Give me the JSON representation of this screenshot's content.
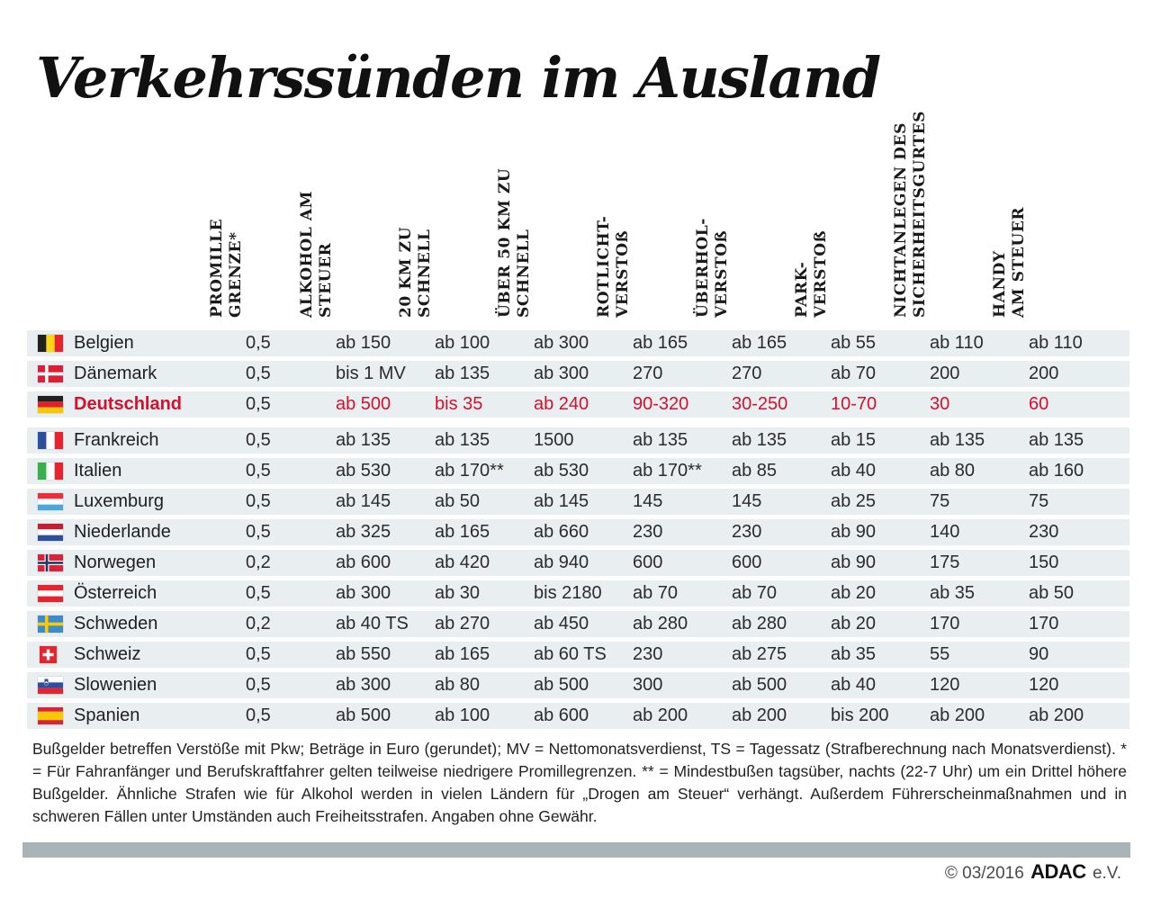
{
  "title": "Verkehrssünden im Ausland",
  "chart_data": {
    "type": "table",
    "title": "Verkehrssünden im Ausland",
    "columns": [
      "Promille Grenze*",
      "Alkohol am Steuer",
      "20 km zu schnell",
      "Über 50 km zu schnell",
      "Rotlicht-Verstoß",
      "Überhol-Verstoß",
      "Park-Verstoß",
      "Nichtanlegen des Sicherheitsgurtes",
      "Handy am Steuer"
    ],
    "column_header_lines": [
      [
        "PROMILLE",
        "GRENZE*"
      ],
      [
        "ALKOHOL AM",
        "STEUER"
      ],
      [
        "20 KM ZU",
        "SCHNELL"
      ],
      [
        "ÜBER 50 KM ZU",
        "SCHNELL"
      ],
      [
        "ROTLICHT-",
        "VERSTOß"
      ],
      [
        "ÜBERHOL-",
        "VERSTOß"
      ],
      [
        "PARK-",
        "VERSTOß"
      ],
      [
        "NICHTANLEGEN DES",
        "SICHERHEITSGURTES"
      ],
      [
        "HANDY",
        "AM STEUER"
      ]
    ],
    "rows": [
      {
        "country": "Belgien",
        "flag": "belgium",
        "highlight": false,
        "values": [
          "0,5",
          "ab 150",
          "ab 100",
          "ab 300",
          "ab 165",
          "ab 165",
          "ab 55",
          "ab 110",
          "ab 110"
        ]
      },
      {
        "country": "Dänemark",
        "flag": "denmark",
        "highlight": false,
        "values": [
          "0,5",
          "bis 1 MV",
          "ab 135",
          "ab 300",
          "270",
          "270",
          "ab 70",
          "200",
          "200"
        ]
      },
      {
        "country": "Deutschland",
        "flag": "germany",
        "highlight": true,
        "values": [
          "0,5",
          "ab 500",
          "bis 35",
          "ab 240",
          "90-320",
          "30-250",
          "10-70",
          "30",
          "60"
        ]
      },
      {
        "country": "Frankreich",
        "flag": "france",
        "highlight": false,
        "values": [
          "0,5",
          "ab 135",
          "ab 135",
          "1500",
          "ab 135",
          "ab 135",
          "ab 15",
          "ab 135",
          "ab 135"
        ]
      },
      {
        "country": "Italien",
        "flag": "italy",
        "highlight": false,
        "values": [
          "0,5",
          "ab 530",
          "ab 170**",
          "ab 530",
          "ab 170**",
          "ab 85",
          "ab 40",
          "ab 80",
          "ab 160"
        ]
      },
      {
        "country": "Luxemburg",
        "flag": "luxembourg",
        "highlight": false,
        "values": [
          "0,5",
          "ab 145",
          "ab 50",
          "ab 145",
          "145",
          "145",
          "ab 25",
          "75",
          "75"
        ]
      },
      {
        "country": "Niederlande",
        "flag": "netherlands",
        "highlight": false,
        "values": [
          "0,5",
          "ab 325",
          "ab 165",
          "ab 660",
          "230",
          "230",
          "ab 90",
          "140",
          "230"
        ]
      },
      {
        "country": "Norwegen",
        "flag": "norway",
        "highlight": false,
        "values": [
          "0,2",
          "ab 600",
          "ab 420",
          "ab 940",
          "600",
          "600",
          "ab 90",
          "175",
          "150"
        ]
      },
      {
        "country": "Österreich",
        "flag": "austria",
        "highlight": false,
        "values": [
          "0,5",
          "ab 300",
          "ab 30",
          "bis 2180",
          "ab 70",
          "ab 70",
          "ab 20",
          "ab 35",
          "ab 50"
        ]
      },
      {
        "country": "Schweden",
        "flag": "sweden",
        "highlight": false,
        "values": [
          "0,2",
          "ab 40 TS",
          "ab 270",
          "ab 450",
          "ab 280",
          "ab 280",
          "ab 20",
          "170",
          "170"
        ]
      },
      {
        "country": "Schweiz",
        "flag": "switzerland",
        "highlight": false,
        "values": [
          "0,5",
          "ab 550",
          "ab 165",
          "ab 60 TS",
          "230",
          "ab 275",
          "ab 35",
          "55",
          "90"
        ]
      },
      {
        "country": "Slowenien",
        "flag": "slovenia",
        "highlight": false,
        "values": [
          "0,5",
          "ab 300",
          "ab 80",
          "ab 500",
          "300",
          "ab 500",
          "ab 40",
          "120",
          "120"
        ]
      },
      {
        "country": "Spanien",
        "flag": "spain",
        "highlight": false,
        "values": [
          "0,5",
          "ab 500",
          "ab 100",
          "ab 600",
          "ab 200",
          "ab 200",
          "bis 200",
          "ab 200",
          "ab 200"
        ]
      }
    ]
  },
  "footnote": "Bußgelder betreffen Verstöße mit Pkw; Beträge in Euro (gerundet); MV = Nettomonatsverdienst, TS = Tagessatz (Strafberechnung nach Monatsverdienst). * = Für Fahranfänger und Berufskraftfahrer gelten teilweise niedrigere Promillegrenzen. ** = Mindestbußen tagsüber, nachts (22-7 Uhr) um ein Drittel höhere Bußgelder. Ähnliche Strafen wie für Alkohol werden in vielen Ländern für „Drogen am Steuer“ verhängt. Außerdem Führerscheinmaßnahmen und in schweren Fällen unter Umständen auch Freiheitsstrafen. Angaben ohne Gewähr.",
  "footer": {
    "copyright_prefix": "© 03/2016",
    "brand": "ADAC",
    "suffix": "e.V."
  },
  "colors": {
    "accent_red": "#d2112e",
    "row_bg": "#e9eef0",
    "bar_gray": "#a9b4b6"
  }
}
